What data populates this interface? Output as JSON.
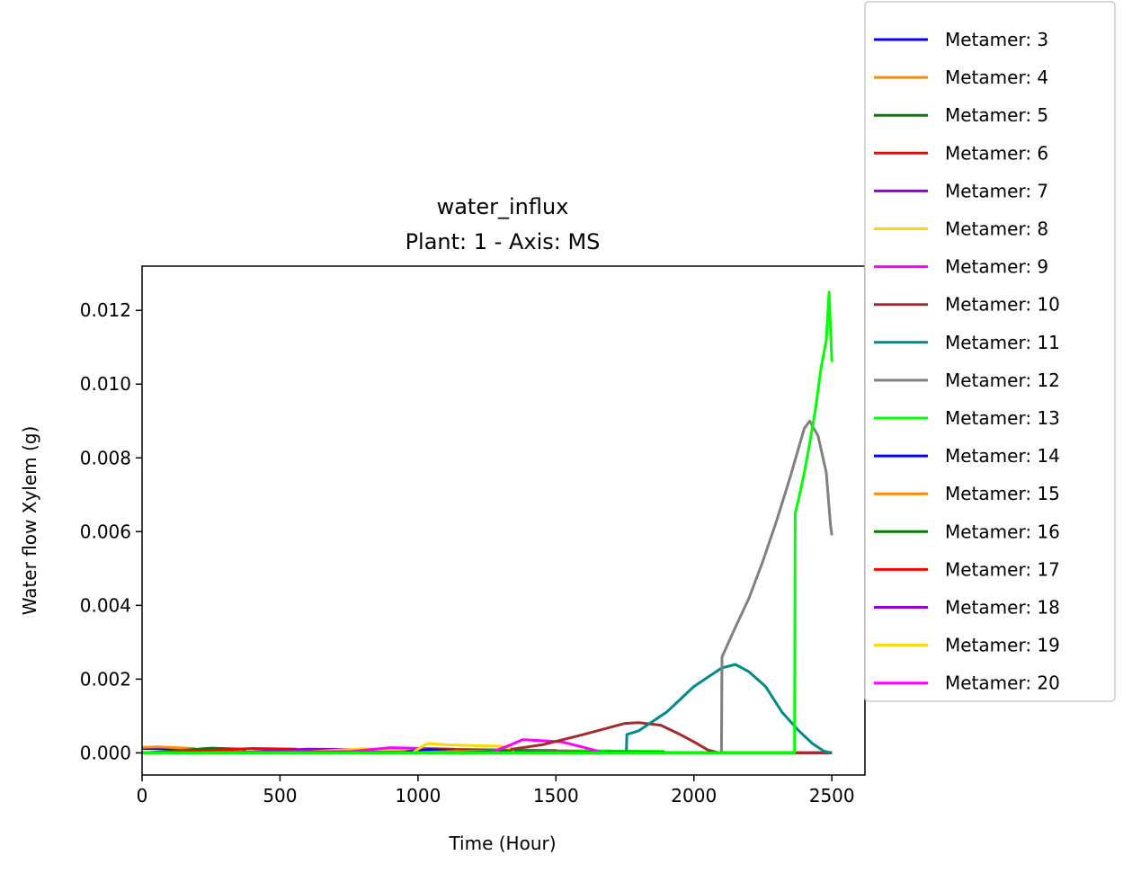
{
  "chart_data": {
    "type": "line",
    "title": "water_influx",
    "subtitle": "Plant: 1 - Axis: MS",
    "xlabel": "Time (Hour)",
    "ylabel": "Water flow Xylem (g)",
    "xlim": [
      0,
      2620
    ],
    "ylim": [
      -0.0006,
      0.0132
    ],
    "xticks": [
      0,
      500,
      1000,
      1500,
      2000,
      2500
    ],
    "yticks": [
      0.0,
      0.002,
      0.004,
      0.006,
      0.008,
      0.01,
      0.012
    ],
    "ytick_labels": [
      "0.000",
      "0.002",
      "0.004",
      "0.006",
      "0.008",
      "0.010",
      "0.012"
    ],
    "grid": false,
    "legend_position": "outside-right",
    "series": [
      {
        "name": "Metamer: 3",
        "color": "#0000ff",
        "x": [
          0,
          180,
          185,
          2500
        ],
        "y": [
          0.00012,
          0.0001,
          0.0,
          0.0
        ]
      },
      {
        "name": "Metamer: 4",
        "color": "#ff8c00",
        "x": [
          0,
          60,
          190,
          195,
          2500
        ],
        "y": [
          0.00015,
          0.00016,
          0.00012,
          0.0,
          0.0
        ]
      },
      {
        "name": "Metamer: 5",
        "color": "#008000",
        "x": [
          0,
          100,
          250,
          370,
          375,
          2500
        ],
        "y": [
          0.0,
          4e-05,
          0.00013,
          0.0001,
          0.0,
          0.0
        ]
      },
      {
        "name": "Metamer: 6",
        "color": "#ff0000",
        "x": [
          0,
          200,
          400,
          560,
          565,
          2500
        ],
        "y": [
          0.0,
          5e-05,
          0.00012,
          0.0001,
          0.0,
          0.0
        ]
      },
      {
        "name": "Metamer: 7",
        "color": "#9400d3",
        "x": [
          0,
          400,
          600,
          750,
          755,
          2500
        ],
        "y": [
          0.0,
          3e-05,
          0.0001,
          9e-05,
          0.0,
          0.0
        ]
      },
      {
        "name": "Metamer: 8",
        "color": "#ffd700",
        "x": [
          0,
          600,
          800,
          940,
          945,
          2500
        ],
        "y": [
          0.0,
          3e-05,
          0.00011,
          0.0001,
          0.0,
          0.0
        ]
      },
      {
        "name": "Metamer: 9",
        "color": "#ff00ff",
        "x": [
          0,
          760,
          900,
          1130,
          1135,
          2500
        ],
        "y": [
          0.0,
          4e-05,
          0.00014,
          0.0001,
          0.0,
          0.0
        ]
      },
      {
        "name": "Metamer: 10",
        "color": "#a52a2a",
        "x": [
          0,
          940,
          1050,
          1320,
          1325,
          2500
        ],
        "y": [
          0.0,
          3e-05,
          0.0001,
          8e-05,
          0.0,
          0.0
        ]
      },
      {
        "name": "Metamer: 11",
        "color": "#008b8b",
        "x": [
          0,
          1130,
          1250,
          1500,
          1505,
          2500
        ],
        "y": [
          0.0,
          2e-05,
          8e-05,
          7e-05,
          0.0,
          0.0
        ]
      },
      {
        "name": "Metamer: 12",
        "color": "#808080",
        "x": [
          0,
          1320,
          1450,
          1700,
          1705,
          2500
        ],
        "y": [
          0.0,
          2e-05,
          6e-05,
          5e-05,
          0.0,
          0.0
        ]
      },
      {
        "name": "Metamer: 13",
        "color": "#00ff00",
        "x": [
          0,
          1500,
          1600,
          1890,
          1895,
          2500
        ],
        "y": [
          0.0,
          2e-05,
          5e-05,
          4e-05,
          0.0,
          0.0
        ]
      },
      {
        "name": "Metamer: 14",
        "color": "#0000ff",
        "x": [
          0,
          940,
          1000,
          1040,
          1060,
          1130,
          1135,
          2500
        ],
        "y": [
          0.0,
          0.0,
          6e-05,
          9e-05,
          8e-05,
          5e-05,
          0.0,
          0.0
        ]
      },
      {
        "name": "Metamer: 15",
        "color": "#ff8c00",
        "x": [
          0,
          950,
          1130,
          1320,
          1325,
          2500
        ],
        "y": [
          0.0,
          0.0,
          4e-05,
          3e-05,
          0.0,
          0.0
        ]
      },
      {
        "name": "Metamer: 16",
        "color": "#008000",
        "x": [
          0,
          1130,
          1320,
          1500,
          1505,
          2500
        ],
        "y": [
          0.0,
          0.0,
          4e-05,
          3e-05,
          0.0,
          0.0
        ]
      },
      {
        "name": "Metamer: 17",
        "color": "#ff0000",
        "x": [
          0,
          1320,
          1500,
          1700,
          1705,
          2500
        ],
        "y": [
          0.0,
          0.0,
          3e-05,
          2e-05,
          0.0,
          0.0
        ]
      },
      {
        "name": "Metamer: 18",
        "color": "#9400d3",
        "x": [
          0,
          1500,
          1700,
          1890,
          1895,
          2500
        ],
        "y": [
          0.0,
          0.0,
          3e-05,
          2e-05,
          0.0,
          0.0
        ]
      },
      {
        "name": "Metamer: 19",
        "color": "#ffd700",
        "x": [
          0,
          980,
          1020,
          1040,
          1100,
          1200,
          1300,
          1340,
          1345,
          2500
        ],
        "y": [
          0.0,
          0.0,
          0.0002,
          0.00025,
          0.00022,
          0.0002,
          0.00018,
          0.00012,
          0.0,
          0.0
        ]
      },
      {
        "name": "Metamer: 20",
        "color": "#ff00ff",
        "x": [
          0,
          1260,
          1330,
          1380,
          1450,
          1520,
          1600,
          1660,
          1700,
          2500
        ],
        "y": [
          0.0,
          0.0,
          0.0002,
          0.00036,
          0.00033,
          0.0003,
          0.00015,
          3e-05,
          0.0,
          0.0
        ]
      },
      {
        "name": "Metamer: 10",
        "color": "#a52a2a",
        "x": [
          0,
          1330,
          1340,
          1450,
          1600,
          1750,
          1800,
          1880,
          1950,
          2000,
          2050,
          2090,
          2500
        ],
        "y": [
          0.0,
          0.0,
          0.0001,
          0.00022,
          0.0005,
          0.0008,
          0.00082,
          0.00075,
          0.0005,
          0.0003,
          8e-05,
          0.0,
          0.0
        ]
      },
      {
        "name": "Metamer: 11",
        "color": "#008b8b",
        "x": [
          0,
          1755,
          1757,
          1800,
          1900,
          2000,
          2100,
          2150,
          2200,
          2260,
          2320,
          2380,
          2430,
          2470,
          2500
        ],
        "y": [
          0.0,
          0.0,
          0.0005,
          0.0006,
          0.0011,
          0.0018,
          0.0023,
          0.0024,
          0.0022,
          0.0018,
          0.0011,
          0.0006,
          0.00025,
          5e-05,
          0.0
        ]
      },
      {
        "name": "Metamer: 12",
        "color": "#808080",
        "x": [
          0,
          2100,
          2102,
          2150,
          2200,
          2250,
          2300,
          2350,
          2400,
          2420,
          2450,
          2480,
          2495,
          2500
        ],
        "y": [
          0.0,
          0.0,
          0.0026,
          0.0034,
          0.0042,
          0.0052,
          0.0063,
          0.0075,
          0.0088,
          0.009,
          0.0086,
          0.0076,
          0.0062,
          0.0059
        ]
      },
      {
        "name": "Metamer: 13",
        "color": "#00ff00",
        "x": [
          0,
          2365,
          2367,
          2380,
          2400,
          2420,
          2440,
          2460,
          2480,
          2490,
          2500
        ],
        "y": [
          0.0,
          0.0,
          0.0065,
          0.0069,
          0.0076,
          0.0084,
          0.0093,
          0.0104,
          0.0112,
          0.0125,
          0.0106
        ]
      }
    ],
    "legend_entries": [
      {
        "name": "Metamer: 3",
        "color": "#0000ff"
      },
      {
        "name": "Metamer: 4",
        "color": "#ff8c00"
      },
      {
        "name": "Metamer: 5",
        "color": "#008000"
      },
      {
        "name": "Metamer: 6",
        "color": "#ff0000"
      },
      {
        "name": "Metamer: 7",
        "color": "#9400d3"
      },
      {
        "name": "Metamer: 8",
        "color": "#ffd700"
      },
      {
        "name": "Metamer: 9",
        "color": "#ff00ff"
      },
      {
        "name": "Metamer: 10",
        "color": "#a52a2a"
      },
      {
        "name": "Metamer: 11",
        "color": "#008b8b"
      },
      {
        "name": "Metamer: 12",
        "color": "#808080"
      },
      {
        "name": "Metamer: 13",
        "color": "#00ff00"
      },
      {
        "name": "Metamer: 14",
        "color": "#0000ff"
      },
      {
        "name": "Metamer: 15",
        "color": "#ff8c00"
      },
      {
        "name": "Metamer: 16",
        "color": "#008000"
      },
      {
        "name": "Metamer: 17",
        "color": "#ff0000"
      },
      {
        "name": "Metamer: 18",
        "color": "#9400d3"
      },
      {
        "name": "Metamer: 19",
        "color": "#ffd700"
      },
      {
        "name": "Metamer: 20",
        "color": "#ff00ff"
      }
    ]
  }
}
